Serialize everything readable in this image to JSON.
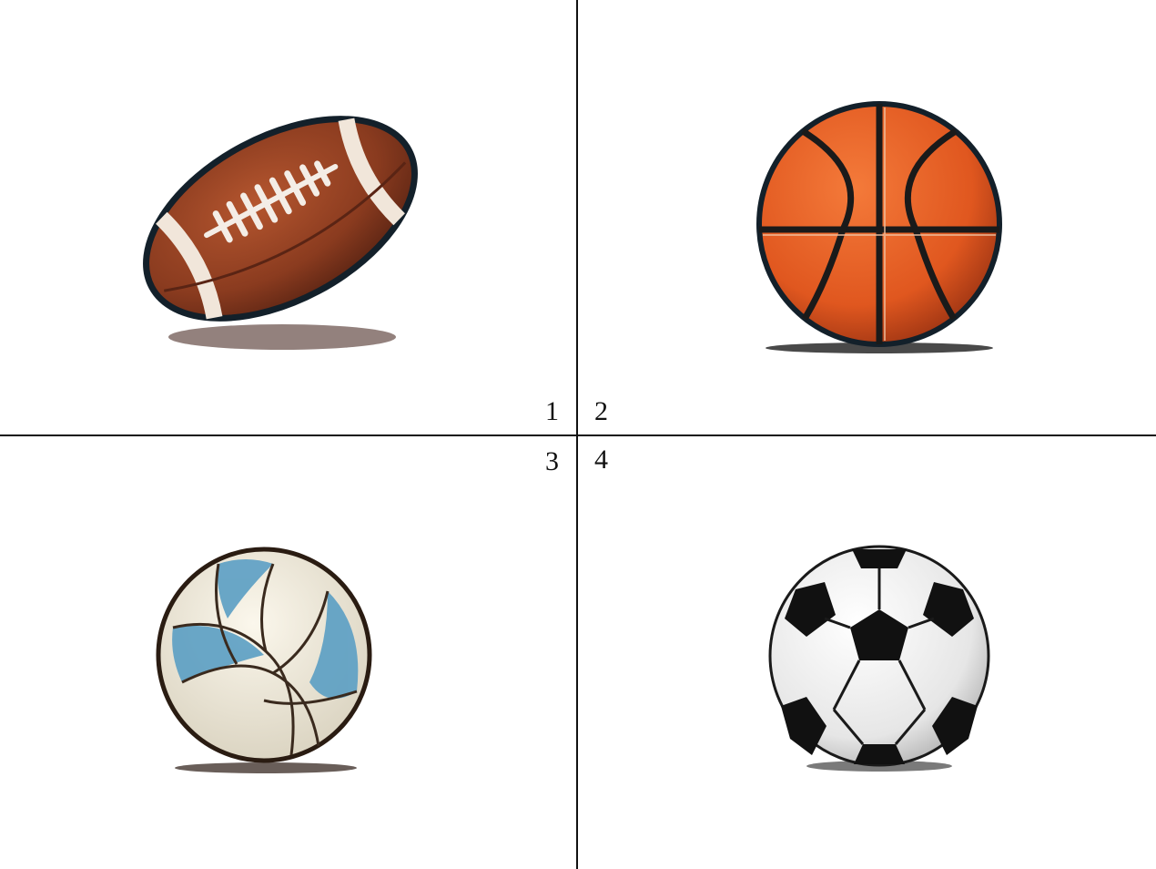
{
  "panels": [
    {
      "label": "1",
      "subject": "american-football"
    },
    {
      "label": "2",
      "subject": "basketball"
    },
    {
      "label": "3",
      "subject": "volleyball"
    },
    {
      "label": "4",
      "subject": "soccer-ball"
    }
  ],
  "colors": {
    "background": "#ffffff",
    "divider": "#111111",
    "football_leather": "#8a3b1f",
    "basketball_orange": "#e0571f",
    "volleyball_blue": "#5b9fc4",
    "soccer_black": "#111111"
  }
}
